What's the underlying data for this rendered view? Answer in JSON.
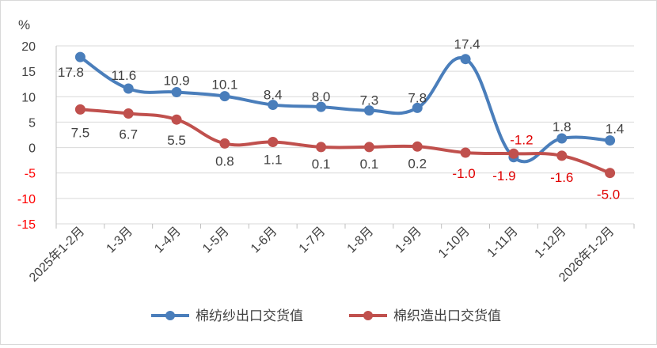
{
  "chart_data": {
    "type": "line",
    "title": "",
    "unit_label": "%",
    "xlabel": "",
    "ylabel": "",
    "ylim": [
      -15,
      20
    ],
    "yticks": [
      20,
      15,
      10,
      5,
      0,
      -5,
      -10,
      -15
    ],
    "grid": true,
    "legend_position": "bottom",
    "categories": [
      "2025年1-2月",
      "1-3月",
      "1-4月",
      "1-5月",
      "1-6月",
      "1-7月",
      "1-8月",
      "1-9月",
      "1-10月",
      "1-11月",
      "1-12月",
      "2026年1-2月"
    ],
    "series": [
      {
        "name": "棉纺纱出口交货值",
        "color": "#4a7ebb",
        "values": [
          17.8,
          11.6,
          10.9,
          10.1,
          8.4,
          8.0,
          7.3,
          7.8,
          17.4,
          -1.9,
          1.8,
          1.4
        ],
        "labels": [
          "17.8",
          "11.6",
          "10.9",
          "10.1",
          "8.4",
          "8.0",
          "7.3",
          "7.8",
          "17.4",
          "-1.9",
          "1.8",
          "1.4"
        ]
      },
      {
        "name": "棉织造出口交货值",
        "color": "#c0504d",
        "values": [
          7.5,
          6.7,
          5.5,
          0.8,
          1.1,
          0.1,
          0.1,
          0.2,
          -1.0,
          -1.2,
          -1.6,
          -5.0
        ],
        "labels": [
          "7.5",
          "6.7",
          "5.5",
          "0.8",
          "1.1",
          "0.1",
          "0.1",
          "0.2",
          "-1.0",
          "-1.2",
          "-1.6",
          "-5.0"
        ]
      }
    ],
    "axis_text_color": "#404040",
    "negative_tick_color": "#ff0000",
    "negative_label_color": "#e00000",
    "grid_color": "#d9d9d9"
  }
}
